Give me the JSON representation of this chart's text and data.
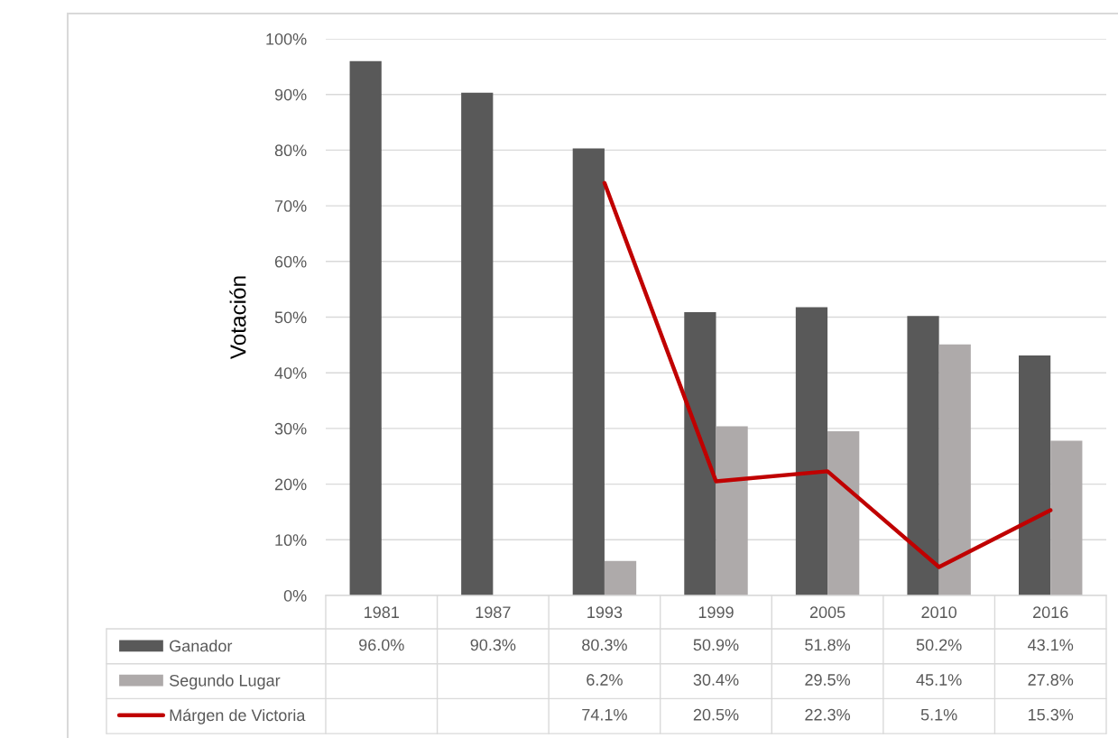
{
  "chart_data": {
    "type": "bar",
    "ylabel": "Votación",
    "categories": [
      "1981",
      "1987",
      "1993",
      "1999",
      "2005",
      "2010",
      "2016"
    ],
    "series": [
      {
        "name": "Ganador",
        "color": "#595959",
        "values": [
          96.0,
          90.3,
          80.3,
          50.9,
          51.8,
          50.2,
          43.1
        ],
        "value_labels": [
          "96.0%",
          "90.3%",
          "80.3%",
          "50.9%",
          "51.8%",
          "50.2%",
          "43.1%"
        ]
      },
      {
        "name": "Segundo Lugar",
        "color": "#aeaaaa",
        "values": [
          null,
          null,
          6.2,
          30.4,
          29.5,
          45.1,
          27.8
        ],
        "value_labels": [
          null,
          null,
          "6.2%",
          "30.4%",
          "29.5%",
          "45.1%",
          "27.8%"
        ]
      },
      {
        "name": "Márgen de Victoria",
        "type": "line",
        "color": "#c00000",
        "values": [
          null,
          null,
          74.1,
          20.5,
          22.3,
          5.1,
          15.3
        ],
        "value_labels": [
          null,
          null,
          "74.1%",
          "20.5%",
          "22.3%",
          "5.1%",
          "15.3%"
        ]
      }
    ],
    "ylim": [
      0,
      100
    ],
    "yticks": [
      {
        "value": 0,
        "label": "0%"
      },
      {
        "value": 10,
        "label": "10%"
      },
      {
        "value": 20,
        "label": "20%"
      },
      {
        "value": 30,
        "label": "30%"
      },
      {
        "value": 40,
        "label": "40%"
      },
      {
        "value": 50,
        "label": "50%"
      },
      {
        "value": 60,
        "label": "60%"
      },
      {
        "value": 70,
        "label": "70%"
      },
      {
        "value": 80,
        "label": "80%"
      },
      {
        "value": 90,
        "label": "90%"
      },
      {
        "value": 100,
        "label": "100%"
      }
    ],
    "grid": "y",
    "legend": "bottom",
    "line_style": "solid"
  }
}
